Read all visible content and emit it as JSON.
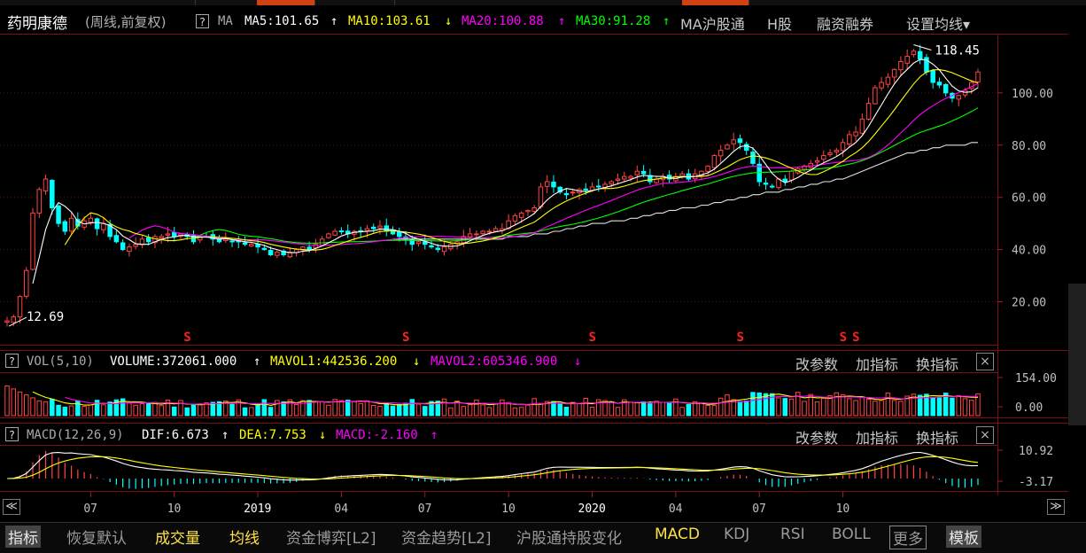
{
  "header": {
    "stock_name": "药明康德",
    "period": "(周线,前复权)",
    "help": "?",
    "ma_label": "MA",
    "ma5": "MA5:101.65",
    "ma10": "MA10:103.61",
    "ma20": "MA20:100.88",
    "ma30": "MA30:91.28",
    "ma_arrow_up": "↑",
    "ma_arrow_down": "↓",
    "link_hugutong": "MA沪股通",
    "link_hshare": "H股",
    "link_margin": "融资融券",
    "settings": "设置均线▾",
    "colors": {
      "ma5": "#ffffff",
      "ma10": "#ffff00",
      "ma20": "#ff00ff",
      "ma30": "#00ff00",
      "ma60": "#e0e0e0",
      "up": "#ff4444",
      "down": "#00ffff"
    }
  },
  "volume_panel": {
    "help": "?",
    "name": "VOL(5,10)",
    "volume": "VOLUME:372061.000",
    "mavol1": "MAVOL1:442536.200",
    "mavol2": "MAVOL2:605346.900",
    "arrow_up": "↑",
    "arrow_down": "↓",
    "btn_params": "改参数",
    "btn_add": "加指标",
    "btn_switch": "换指标",
    "close": "×",
    "axis": [
      "154.00",
      "0.00"
    ]
  },
  "macd_panel": {
    "help": "?",
    "name": "MACD(12,26,9)",
    "dif": "DIF:6.673",
    "dea": "DEA:7.753",
    "macd": "MACD:-2.160",
    "arrow_up": "↑",
    "arrow_down": "↓",
    "btn_params": "改参数",
    "btn_add": "加指标",
    "btn_switch": "换指标",
    "close": "×",
    "axis": [
      "10.92",
      "-3.17"
    ]
  },
  "price_axis": [
    "100.00",
    "80.00",
    "60.00",
    "40.00",
    "20.00"
  ],
  "annotations": {
    "high": "118.45",
    "low": "12.69",
    "signal": "S"
  },
  "time_axis": [
    "07",
    "10",
    "2019",
    "04",
    "07",
    "10",
    "2020",
    "04",
    "07",
    "10"
  ],
  "nav": {
    "left": "≪",
    "right": "≫"
  },
  "bottom_tabs": [
    {
      "label": "指标",
      "style": "active"
    },
    {
      "label": "恢复默认",
      "style": ""
    },
    {
      "label": "成交量",
      "style": "yellow"
    },
    {
      "label": "均线",
      "style": "yellow"
    },
    {
      "label": "资金博弈[L2]",
      "style": ""
    },
    {
      "label": "资金趋势[L2]",
      "style": ""
    },
    {
      "label": "沪股通持股变化",
      "style": ""
    },
    {
      "label": "MACD",
      "style": "yellow"
    },
    {
      "label": "KDJ",
      "style": ""
    },
    {
      "label": "RSI",
      "style": ""
    },
    {
      "label": "BOLL",
      "style": ""
    },
    {
      "label": "更多",
      "style": "boxed"
    },
    {
      "label": "模板",
      "style": "active"
    }
  ],
  "chart_data": {
    "type": "candlestick",
    "interval": "weekly",
    "high": 118.45,
    "low": 12.69,
    "ylim": [
      10,
      122
    ],
    "weeks_per_index": 1,
    "closes": [
      12.7,
      14.2,
      22,
      32,
      54,
      63,
      67,
      56,
      50,
      47,
      52,
      49,
      51,
      52,
      48,
      50,
      45,
      43,
      40,
      41,
      42,
      44,
      43,
      45,
      45,
      46,
      45,
      46,
      45,
      43,
      45,
      45,
      44,
      43,
      44,
      43,
      43,
      42,
      42,
      41,
      40,
      38,
      39,
      38,
      39,
      40,
      41,
      40,
      42,
      44,
      46,
      47,
      47,
      46,
      47,
      47,
      48,
      48,
      49,
      47,
      46,
      45,
      44,
      42,
      43,
      42,
      41,
      40,
      41,
      42,
      43,
      45,
      46,
      46,
      47,
      47,
      48,
      48,
      51,
      53,
      54,
      55,
      56,
      64,
      66,
      64,
      62,
      61,
      62,
      63,
      63,
      64,
      64,
      65,
      66,
      67,
      68,
      68,
      70,
      69,
      66,
      67,
      68,
      67,
      68,
      69,
      67,
      69,
      70,
      72,
      76,
      78,
      80,
      82,
      81,
      78,
      73,
      66,
      65,
      64,
      67,
      66,
      70,
      71,
      72,
      73,
      74,
      76,
      77,
      78,
      81,
      84,
      85,
      90,
      96,
      102,
      104,
      106,
      109,
      112,
      114,
      116,
      113,
      108,
      104,
      103,
      100,
      98,
      99,
      101,
      104,
      108
    ],
    "ma60": [
      null,
      null,
      null,
      null,
      null,
      null,
      null,
      null,
      null,
      null,
      null,
      null,
      null,
      null,
      null,
      null,
      null,
      null,
      null,
      null,
      null,
      null,
      null,
      null,
      null,
      null,
      null,
      null,
      null,
      null,
      null,
      null,
      null,
      null,
      null,
      null,
      null,
      null,
      null,
      null,
      null,
      null,
      null,
      null,
      null,
      null,
      null,
      null,
      null,
      null,
      null,
      null,
      null,
      null,
      null,
      null,
      null,
      null,
      null,
      null,
      44,
      44,
      44,
      44,
      44,
      44,
      44,
      44,
      44,
      44,
      44,
      44,
      44,
      44,
      44,
      44,
      44,
      44,
      45,
      45,
      45,
      45,
      46,
      46,
      46,
      47,
      47,
      48,
      48,
      49,
      49,
      50,
      50,
      50,
      51,
      51,
      51,
      52,
      52,
      53,
      53,
      54,
      54,
      55,
      55,
      56,
      56,
      56,
      57,
      57,
      58,
      58,
      59,
      59,
      60,
      60,
      61,
      61,
      62,
      62,
      62,
      63,
      63,
      64,
      64,
      65,
      65,
      66,
      66,
      67,
      67,
      68,
      69,
      70,
      71,
      72,
      73,
      74,
      75,
      76,
      77,
      77,
      78,
      78,
      79,
      79,
      80,
      80,
      80,
      80,
      81,
      81
    ]
  }
}
